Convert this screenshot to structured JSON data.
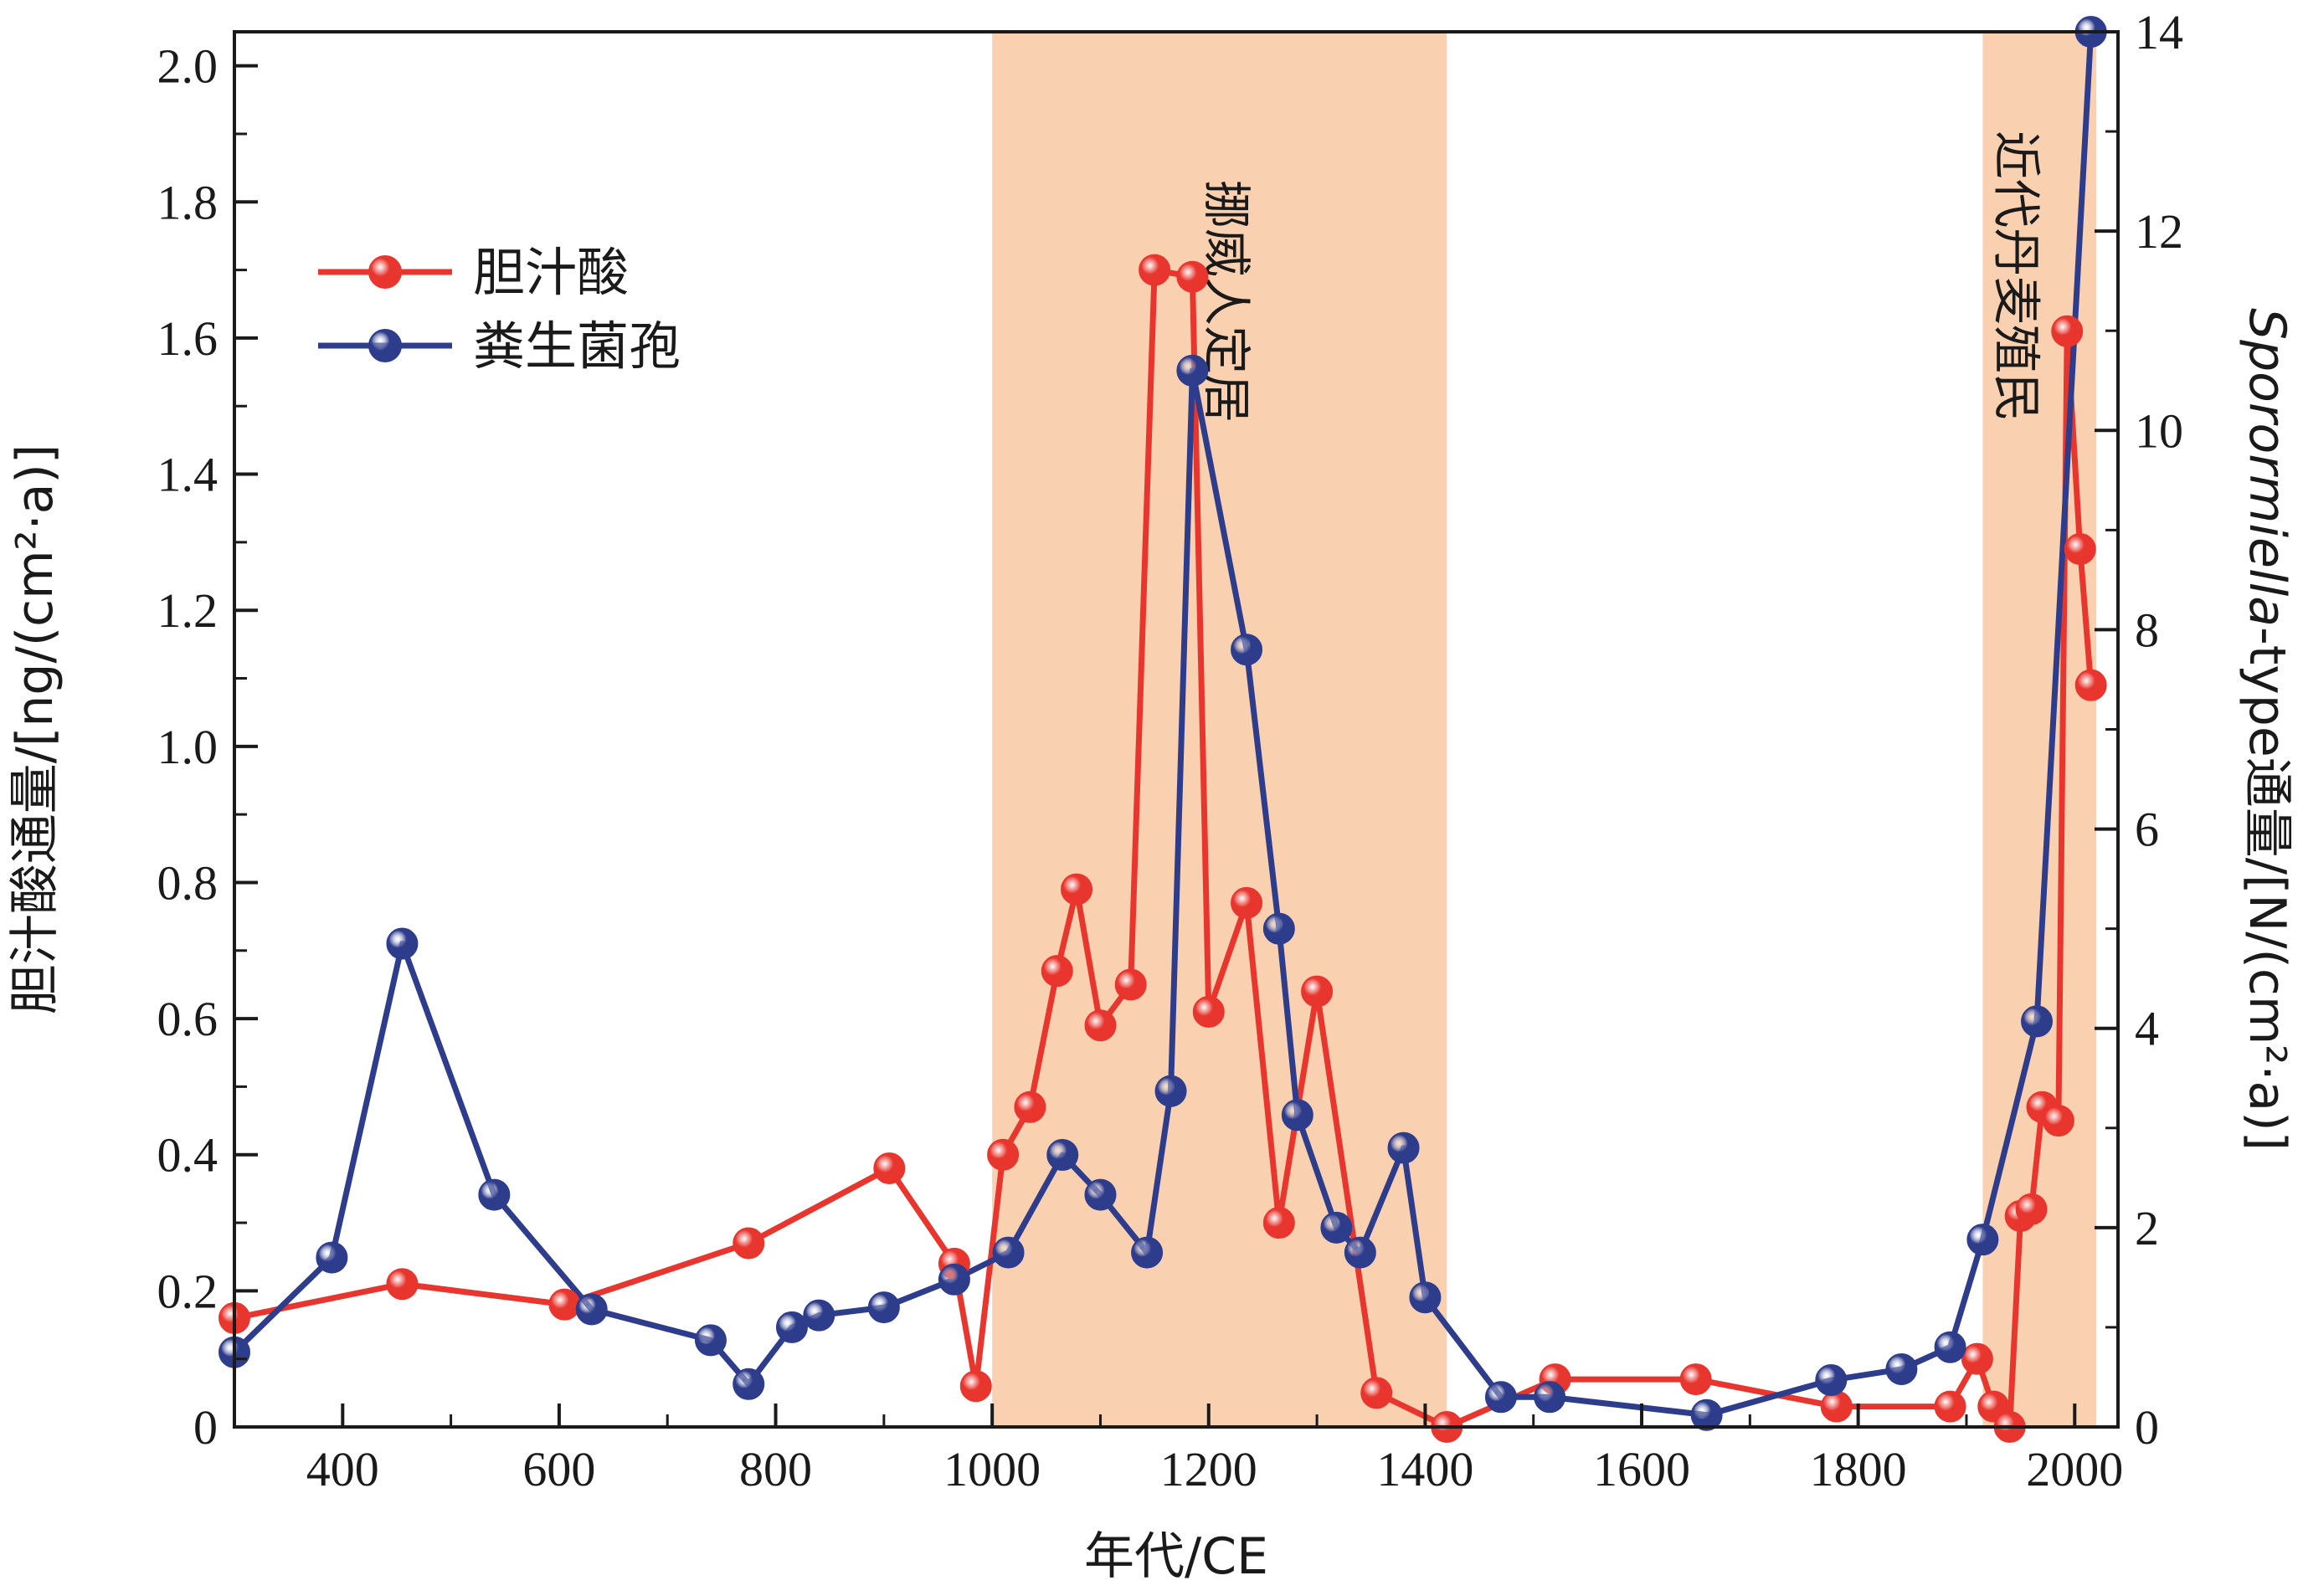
{
  "chart_data": {
    "type": "line",
    "xlabel": "年代/CE",
    "ylabel_left": "胆汁酸通量/[ng/(cm²·a)]",
    "ylabel_right_italic": "Sporormiella",
    "ylabel_right_rest": "-type通量/[N/(cm²·a)]",
    "xlim": [
      300,
      2040
    ],
    "ylim_left": [
      0,
      2.05
    ],
    "ylim_right": [
      0,
      14
    ],
    "x_ticks": [
      400,
      600,
      800,
      1000,
      1200,
      1400,
      1600,
      1800,
      2000
    ],
    "left_ticks": [
      0,
      0.2,
      0.4,
      0.6,
      0.8,
      1.0,
      1.2,
      1.4,
      1.6,
      1.8,
      2.0
    ],
    "left_tick_labels": [
      "0",
      "0.2",
      "0.4",
      "0.6",
      "0.8",
      "1.0",
      "1.2",
      "1.4",
      "1.6",
      "1.8",
      "2.0"
    ],
    "right_ticks": [
      0,
      2,
      4,
      6,
      8,
      10,
      12,
      14
    ],
    "right_tick_labels": [
      "0",
      "2",
      "4",
      "6",
      "8",
      "10",
      "12",
      "14"
    ],
    "shaded_regions": [
      {
        "label": "挪威人定居",
        "x": [
          1000,
          1420
        ]
      },
      {
        "label": "近代丹麦殖民",
        "x": [
          1915,
          2020
        ]
      }
    ],
    "legend_position": "top-left",
    "series": [
      {
        "name": "胆汁酸",
        "axis": "left",
        "color": "#e8352e",
        "x": [
          300,
          455,
          605,
          775,
          905,
          965,
          985,
          1010,
          1035,
          1060,
          1078,
          1100,
          1128,
          1150,
          1185,
          1200,
          1235,
          1265,
          1300,
          1355,
          1420,
          1520,
          1650,
          1780,
          1885,
          1910,
          1925,
          1940,
          1950,
          1960,
          1970,
          1985,
          1993,
          2005,
          2015
        ],
        "values": [
          0.16,
          0.21,
          0.18,
          0.27,
          0.38,
          0.24,
          0.06,
          0.4,
          0.47,
          0.67,
          0.79,
          0.59,
          0.65,
          1.7,
          1.69,
          0.61,
          0.77,
          0.3,
          0.64,
          0.05,
          0.0,
          0.07,
          0.07,
          0.03,
          0.03,
          0.1,
          0.03,
          0.0,
          0.31,
          0.32,
          0.47,
          0.45,
          1.61,
          1.29,
          1.09
        ]
      },
      {
        "name": "粪生菌孢",
        "axis": "right",
        "color": "#2e3c8c",
        "x": [
          300,
          390,
          455,
          540,
          630,
          740,
          775,
          815,
          840,
          900,
          965,
          1015,
          1065,
          1100,
          1143,
          1165,
          1185,
          1235,
          1265,
          1282,
          1318,
          1340,
          1380,
          1400,
          1470,
          1515,
          1660,
          1775,
          1840,
          1885,
          1915,
          1965,
          2015
        ],
        "values": [
          0.75,
          1.7,
          4.85,
          2.33,
          1.18,
          0.87,
          0.43,
          1.0,
          1.12,
          1.2,
          1.48,
          1.75,
          2.73,
          2.33,
          1.75,
          3.37,
          10.6,
          7.8,
          5.0,
          3.13,
          2.0,
          1.75,
          2.8,
          1.3,
          0.3,
          0.3,
          0.12,
          0.47,
          0.58,
          0.8,
          1.88,
          4.07,
          14.0
        ]
      }
    ]
  }
}
